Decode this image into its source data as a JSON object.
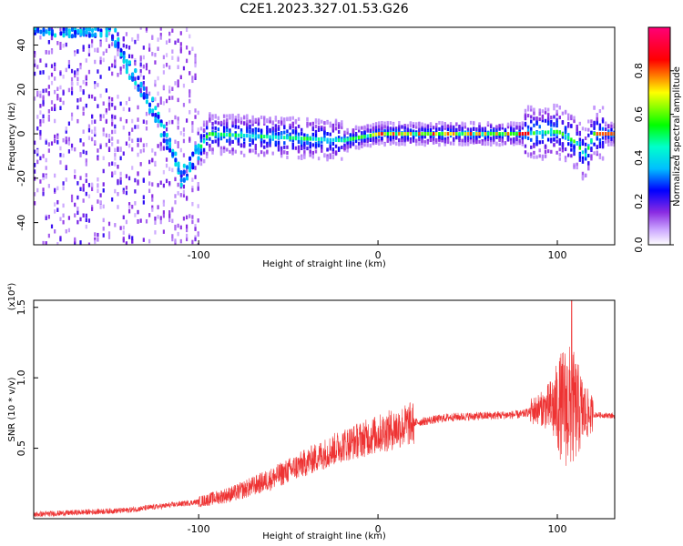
{
  "title": "C2E1.2023.327.01.53.G26",
  "chart_data": [
    {
      "type": "heatmap",
      "name": "spectrogram",
      "xlabel": "Height of straight line (km)",
      "ylabel": "Frequency (Hz)",
      "xlim": [
        -192,
        132
      ],
      "ylim": [
        -50,
        48
      ],
      "xticks": [
        -100,
        0,
        100
      ],
      "yticks": [
        -40,
        -20,
        0,
        20,
        40
      ],
      "colorbar": {
        "label": "Normalized spectral amplitude",
        "range": [
          0,
          1
        ],
        "ticks": [
          "0.0",
          "0.2",
          "0.4",
          "0.6",
          "0.8"
        ],
        "colors": [
          "#ffffff",
          "#b48cff",
          "#7a00ff",
          "#0000ff",
          "#00ffff",
          "#00ff00",
          "#ffff00",
          "#ff0000",
          "#ff0077"
        ]
      },
      "ridge": [
        {
          "x": -192,
          "y": 48
        },
        {
          "x": -150,
          "y": 48
        },
        {
          "x": -140,
          "y": 30
        },
        {
          "x": -125,
          "y": 10
        },
        {
          "x": -110,
          "y": -20
        },
        {
          "x": -95,
          "y": 0
        },
        {
          "x": -20,
          "y": -3
        },
        {
          "x": 0,
          "y": 0
        },
        {
          "x": 80,
          "y": 0
        },
        {
          "x": 100,
          "y": 1
        },
        {
          "x": 110,
          "y": -4
        },
        {
          "x": 115,
          "y": -10
        },
        {
          "x": 120,
          "y": 0
        },
        {
          "x": 132,
          "y": 0
        }
      ]
    },
    {
      "type": "line",
      "name": "snr",
      "xlabel": "Height of straight line (km)",
      "ylabel": "SNR (10 * v/v)",
      "yscale_label": "(x10⁴)",
      "xlim": [
        -192,
        132
      ],
      "ylim": [
        0,
        1.55
      ],
      "xticks": [
        -100,
        0,
        100
      ],
      "yticks": [
        0.5,
        1.0,
        1.5
      ],
      "ytick_labels": [
        "0.5",
        "1.0",
        "1.5"
      ],
      "color": "#ee3333",
      "envelope": [
        {
          "x": -192,
          "y": 0.03
        },
        {
          "x": -140,
          "y": 0.06
        },
        {
          "x": -100,
          "y": 0.12
        },
        {
          "x": -80,
          "y": 0.18
        },
        {
          "x": -60,
          "y": 0.28
        },
        {
          "x": -40,
          "y": 0.4
        },
        {
          "x": -20,
          "y": 0.52
        },
        {
          "x": 0,
          "y": 0.6
        },
        {
          "x": 20,
          "y": 0.68
        },
        {
          "x": 40,
          "y": 0.72
        },
        {
          "x": 60,
          "y": 0.73
        },
        {
          "x": 80,
          "y": 0.74
        },
        {
          "x": 90,
          "y": 0.78
        },
        {
          "x": 105,
          "y": 0.8
        },
        {
          "x": 118,
          "y": 0.74
        },
        {
          "x": 132,
          "y": 0.73
        }
      ],
      "peak": {
        "x": 108,
        "y": 1.55
      }
    }
  ]
}
